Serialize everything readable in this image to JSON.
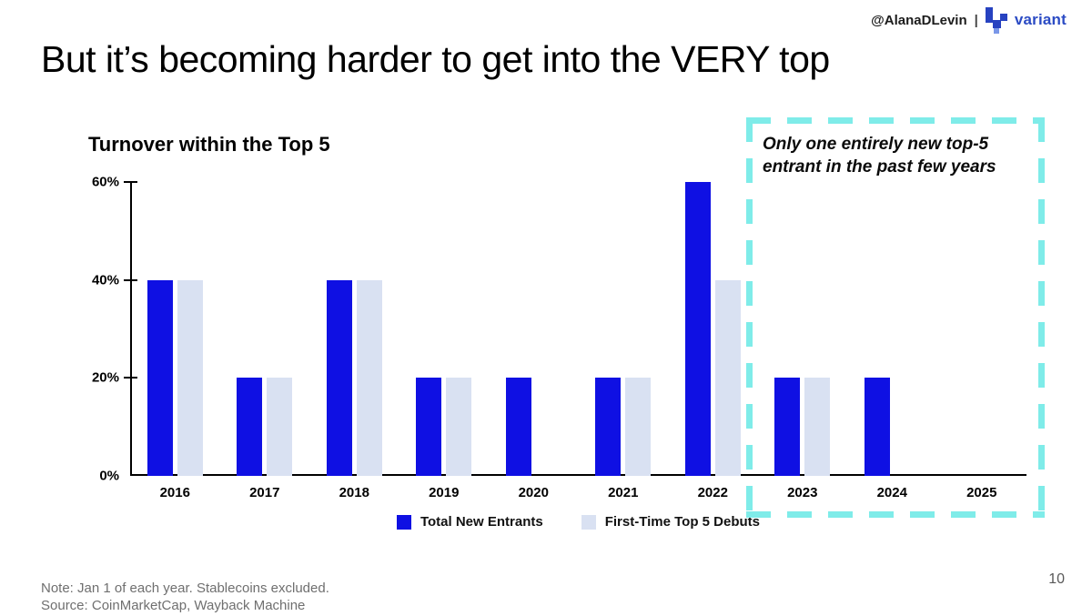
{
  "header": {
    "handle": "@AlanaDLevin",
    "separator": "|",
    "brand": "variant"
  },
  "slide": {
    "title": "But it’s becoming harder to get into the VERY top",
    "page_number": "10"
  },
  "chart_data": {
    "type": "bar",
    "title": "Turnover within the Top 5",
    "categories": [
      "2016",
      "2017",
      "2018",
      "2019",
      "2020",
      "2021",
      "2022",
      "2023",
      "2024",
      "2025"
    ],
    "series": [
      {
        "name": "Total New Entrants",
        "color": "#0f10e3",
        "values": [
          40,
          20,
          40,
          20,
          20,
          20,
          60,
          20,
          20,
          0
        ]
      },
      {
        "name": "First-Time Top 5 Debuts",
        "color": "#d9e1f2",
        "values": [
          40,
          20,
          40,
          20,
          0,
          20,
          40,
          20,
          0,
          0
        ]
      }
    ],
    "ylim": [
      0,
      60
    ],
    "yticks": [
      0,
      20,
      40,
      60
    ],
    "ytick_suffix": "%",
    "grid": false,
    "legend_position": "bottom"
  },
  "annotation": {
    "line1": "Only one entirely new top-5",
    "line2": "entrant in the past few years",
    "box_color": "#7fece9"
  },
  "footer": {
    "note": "Note: Jan 1 of each year. Stablecoins excluded.",
    "source": "Source: CoinMarketCap, Wayback Machine"
  },
  "colors": {
    "bar_primary": "#0f10e3",
    "bar_secondary": "#d9e1f2",
    "annotation_dash": "#7fece9",
    "brand_blue": "#2b4bc4",
    "logo_dark": "#2742c0",
    "logo_light": "#7a97e8",
    "note_gray": "#6f6f6f"
  }
}
